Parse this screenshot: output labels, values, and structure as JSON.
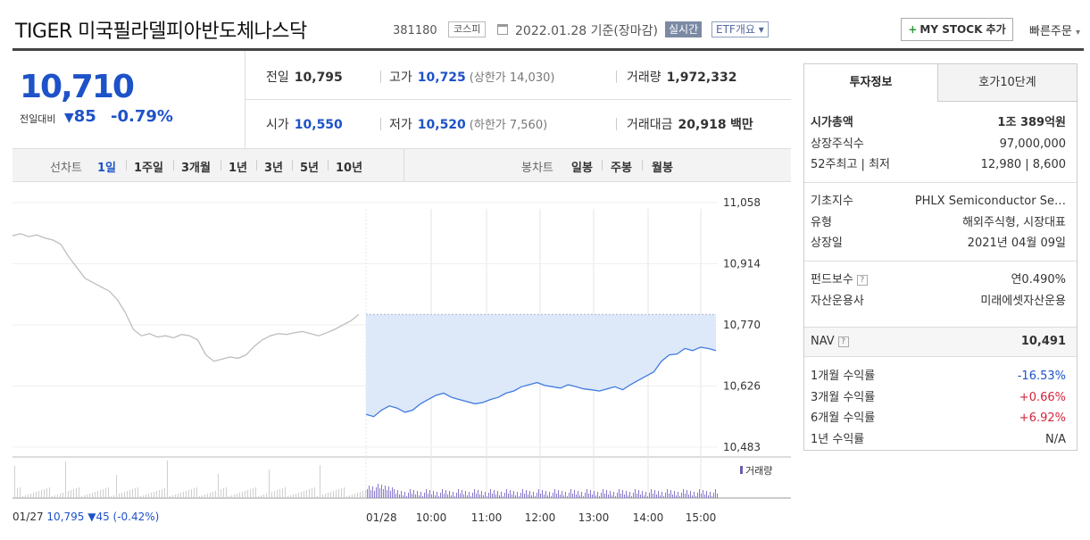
{
  "header": {
    "name": "TIGER 미국필라델피아반도체나스닥",
    "code": "381180",
    "market": "코스피",
    "date": "2022.01.28 기준(장마감)",
    "realtime": "실시간",
    "etf_overview": "ETF개요",
    "mystock": "MY STOCK 추가",
    "quick_order": "빠른주문"
  },
  "price": {
    "current": "10,710",
    "change_label": "전일대비",
    "change": "85",
    "change_pct": "-0.79%",
    "prev_label": "전일",
    "prev": "10,795",
    "high_label": "고가",
    "high": "10,725",
    "upper_limit": "(상한가 14,030)",
    "volume_label": "거래량",
    "volume": "1,972,332",
    "open_label": "시가",
    "open": "10,550",
    "low_label": "저가",
    "low": "10,520",
    "lower_limit": "(하한가 7,560)",
    "amount_label": "거래대금",
    "amount": "20,918",
    "amount_unit": "백만"
  },
  "tabs": {
    "line_label": "선차트",
    "line_tabs": [
      "1일",
      "1주일",
      "3개월",
      "1년",
      "3년",
      "5년",
      "10년"
    ],
    "candle_label": "봉차트",
    "candle_tabs": [
      "일봉",
      "주봉",
      "월봉"
    ]
  },
  "chart_data": {
    "type": "line",
    "y_ticks": [
      "11,058",
      "10,914",
      "10,770",
      "10,626",
      "10,483"
    ],
    "ylim": [
      10483,
      11058
    ],
    "x_ticks": [
      "01/27",
      "01/28",
      "10:00",
      "11:00",
      "12:00",
      "13:00",
      "14:00",
      "15:00"
    ],
    "volume_label": "거래량",
    "prev_day_summary": "10,795 ▼45 (-0.42%)",
    "prev_day_close": 10795,
    "series": [
      {
        "values": [
          10980,
          10985,
          10978,
          10982,
          10975,
          10970,
          10960,
          10930,
          10905,
          10880,
          10870,
          10860,
          10850,
          10830,
          10800,
          10760,
          10745,
          10750,
          10742,
          10745,
          10740,
          10748,
          10745,
          10735,
          10700,
          10685,
          10690,
          10695,
          10692,
          10700,
          10720,
          10735,
          10745,
          10750,
          10748,
          10752,
          10755,
          10750,
          10745,
          10752,
          10760,
          10770,
          10780,
          10795
        ]
      },
      {
        "values": [
          10560,
          10555,
          10570,
          10580,
          10575,
          10565,
          10570,
          10585,
          10595,
          10605,
          10610,
          10600,
          10595,
          10590,
          10585,
          10588,
          10595,
          10600,
          10610,
          10615,
          10625,
          10630,
          10635,
          10628,
          10625,
          10622,
          10630,
          10625,
          10620,
          10618,
          10615,
          10620,
          10625,
          10618,
          10630,
          10640,
          10650,
          10660,
          10685,
          10700,
          10702,
          10715,
          10710,
          10718,
          10715,
          10710
        ]
      }
    ]
  },
  "info": {
    "tab_active": "투자정보",
    "tab_other": "호가10단계",
    "market_cap_label": "시가총액",
    "market_cap": "1조 389억원",
    "shares_label": "상장주식수",
    "shares": "97,000,000",
    "week52_label": "52주최고 | 최저",
    "week52": "12,980 | 8,600",
    "index_label": "기초지수",
    "index": "PHLX Semiconductor Se…",
    "type_label": "유형",
    "type": "해외주식형, 시장대표",
    "listed_label": "상장일",
    "listed": "2021년 04월 09일",
    "fee_label": "펀드보수",
    "fee": "연0.490%",
    "manager_label": "자산운용사",
    "manager": "미래에셋자산운용",
    "nav_label": "NAV",
    "nav": "10,491",
    "r1m_label": "1개월 수익률",
    "r1m": "-16.53%",
    "r3m_label": "3개월 수익률",
    "r3m": "+0.66%",
    "r6m_label": "6개월 수익률",
    "r6m": "+6.92%",
    "r1y_label": "1년 수익률",
    "r1y": "N/A",
    "help_icon": "?"
  }
}
